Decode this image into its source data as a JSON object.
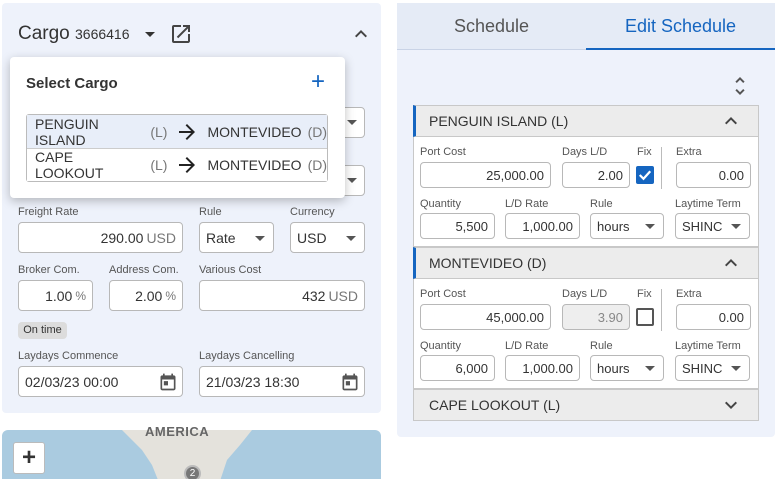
{
  "cargo_header": {
    "title": "Cargo",
    "cargo_id": "3666416"
  },
  "select_cargo": {
    "title": "Select Cargo",
    "add": "+",
    "options": [
      {
        "from": "PENGUIN ISLAND",
        "from_tag": "(L)",
        "to": "MONTEVIDEO",
        "to_tag": "(D)",
        "selected": true
      },
      {
        "from": "CAPE LOOKOUT",
        "from_tag": "(L)",
        "to": "MONTEVIDEO",
        "to_tag": "(D)",
        "selected": false
      }
    ]
  },
  "form": {
    "freight_rate": {
      "label": "Freight Rate",
      "value": "290.00",
      "unit": "USD"
    },
    "rule": {
      "label": "Rule",
      "value": "Rate"
    },
    "currency": {
      "label": "Currency",
      "value": "USD"
    },
    "broker_com": {
      "label": "Broker Com.",
      "value": "1.00",
      "unit": "%"
    },
    "address_com": {
      "label": "Address Com.",
      "value": "2.00",
      "unit": "%"
    },
    "various_cost": {
      "label": "Various Cost",
      "value": "432",
      "unit": "USD"
    },
    "status": "On time",
    "laydays_commence": {
      "label": "Laydays Commence",
      "value": "02/03/23 00:00"
    },
    "laydays_cancelling": {
      "label": "Laydays Cancelling",
      "value": "21/03/23 18:30"
    }
  },
  "map": {
    "region_label": "AMERICA",
    "zoom_in": "+",
    "cluster_count": "2"
  },
  "tabs": {
    "items": [
      "Schedule",
      "Edit Schedule"
    ],
    "active": 1
  },
  "schedule_labels": {
    "port_cost": "Port Cost",
    "days_ld": "Days L/D",
    "fix": "Fix",
    "extra": "Extra",
    "quantity": "Quantity",
    "ld_rate": "L/D Rate",
    "rule": "Rule",
    "laytime_term": "Laytime Term"
  },
  "ports": [
    {
      "name": "PENGUIN ISLAND (L)",
      "expanded": true,
      "port_cost": "25,000.00",
      "days_ld": "2.00",
      "days_ld_locked": false,
      "fix": true,
      "extra": "0.00",
      "quantity": "5,500",
      "ld_rate": "1,000.00",
      "rule": "hours",
      "laytime_term": "SHINC"
    },
    {
      "name": "MONTEVIDEO (D)",
      "expanded": true,
      "port_cost": "45,000.00",
      "days_ld": "3.90",
      "days_ld_locked": true,
      "fix": false,
      "extra": "0.00",
      "quantity": "6,000",
      "ld_rate": "1,000.00",
      "rule": "hours",
      "laytime_term": "SHINC"
    },
    {
      "name": "CAPE LOOKOUT (L)",
      "expanded": false
    }
  ]
}
